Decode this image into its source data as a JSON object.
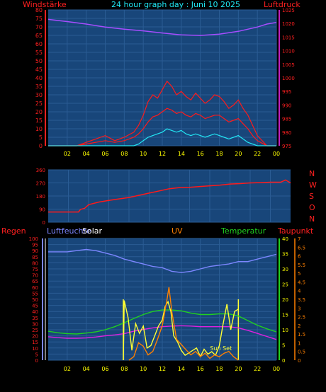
{
  "header": {
    "left": "Windstärke",
    "title": "24 hour graph day : Juni 10 2025",
    "right": "Luftdruck"
  },
  "x_ticks": [
    "02",
    "04",
    "06",
    "08",
    "10",
    "12",
    "14",
    "16",
    "18",
    "20",
    "22",
    "00"
  ],
  "colors": {
    "background": "#000000",
    "panel": "#18467a",
    "grid": "#2a5c94",
    "tick_text": "#ffff00",
    "wind_axis": "#ff2020",
    "pressure_axis": "#c020c0",
    "wind": "#ff1a1a",
    "gust": "#ff1a1a",
    "avg_wind": "#22e8f5",
    "pressure": "#a64dff",
    "direction": "#ff1a1a",
    "humidity": "#7c86ff",
    "solar_axis": "#ffffff",
    "uv": "#ff8000",
    "temperature": "#20d020",
    "dewpoint": "#e020e0",
    "solar": "#ffff33",
    "sunrise_line": "#ffff33"
  },
  "chart_data": [
    {
      "type": "line",
      "name": "wind-and-pressure",
      "x_unit": "hour",
      "xlim": [
        0,
        24
      ],
      "left_axis": {
        "title": "Windstärke",
        "ticks": [
          0,
          5,
          10,
          15,
          20,
          25,
          30,
          35,
          40,
          45,
          50,
          55,
          60,
          65,
          70,
          75,
          80
        ],
        "ylim": [
          0,
          80
        ]
      },
      "right_axis": {
        "title": "Luftdruck",
        "ticks": [
          975,
          980,
          985,
          990,
          995,
          1000,
          1005,
          1010,
          1015,
          1020,
          1025
        ],
        "ylim": [
          975,
          1025
        ]
      },
      "series": [
        {
          "key": "gust",
          "axis": "left",
          "color": "#ff1a1a",
          "x": [
            0,
            1,
            2,
            3,
            4,
            5,
            6,
            7,
            8,
            9,
            9.5,
            10,
            10.5,
            11,
            11.5,
            12,
            12.5,
            13,
            13.5,
            14,
            14.5,
            15,
            15.5,
            16,
            16.5,
            17,
            17.5,
            18,
            18.5,
            19,
            19.5,
            20,
            20.5,
            21,
            21.5,
            22,
            23,
            24
          ],
          "values": [
            0,
            0,
            0,
            0,
            2,
            4,
            6,
            3,
            5,
            8,
            12,
            18,
            26,
            30,
            28,
            33,
            38,
            35,
            30,
            32,
            29,
            27,
            31,
            28,
            25,
            27,
            30,
            29,
            26,
            22,
            24,
            27,
            22,
            18,
            12,
            6,
            0,
            0
          ]
        },
        {
          "key": "wind",
          "axis": "left",
          "color": "#ff1a1a",
          "x": [
            0,
            1,
            2,
            3,
            4,
            5,
            6,
            7,
            8,
            9,
            9.5,
            10,
            10.5,
            11,
            11.5,
            12,
            12.5,
            13,
            13.5,
            14,
            14.5,
            15,
            15.5,
            16,
            16.5,
            17,
            17.5,
            18,
            18.5,
            19,
            19.5,
            20,
            20.5,
            21,
            21.5,
            22,
            23,
            24
          ],
          "values": [
            0,
            0,
            0,
            0,
            1,
            2,
            3,
            2,
            3,
            5,
            7,
            10,
            14,
            17,
            18,
            20,
            22,
            21,
            19,
            20,
            18,
            17,
            19,
            18,
            16,
            17,
            18,
            18,
            16,
            14,
            15,
            16,
            13,
            10,
            6,
            3,
            0,
            0
          ]
        },
        {
          "key": "avg_wind",
          "axis": "left",
          "color": "#22e8f5",
          "x": [
            0,
            9,
            9.5,
            10,
            10.5,
            11,
            11.5,
            12,
            12.5,
            13,
            13.5,
            14,
            14.5,
            15,
            15.5,
            16,
            16.5,
            17,
            17.5,
            18,
            18.5,
            19,
            19.5,
            20,
            20.5,
            21,
            22,
            24
          ],
          "values": [
            0,
            0,
            1,
            3,
            5,
            6,
            7,
            8,
            10,
            9,
            8,
            9,
            7,
            6,
            7,
            6,
            5,
            6,
            7,
            6,
            5,
            4,
            5,
            6,
            4,
            2,
            0,
            0
          ]
        },
        {
          "key": "pressure",
          "axis": "right",
          "color": "#a64dff",
          "x": [
            0,
            2,
            4,
            6,
            8,
            10,
            12,
            14,
            16,
            18,
            20,
            22,
            23,
            24
          ],
          "values": [
            1021.5,
            1020.7,
            1019.8,
            1018.7,
            1017.9,
            1017.3,
            1016.5,
            1015.8,
            1015.6,
            1016.1,
            1017.1,
            1018.7,
            1019.8,
            1020.4
          ]
        }
      ]
    },
    {
      "type": "scatter",
      "name": "wind-direction",
      "x_unit": "hour",
      "xlim": [
        0,
        24
      ],
      "left_axis": {
        "ticks": [
          0,
          90,
          180,
          270,
          360
        ],
        "ylim": [
          0,
          360
        ]
      },
      "right_labels": [
        "N",
        "W",
        "S",
        "O",
        "N"
      ],
      "series": [
        {
          "key": "direction",
          "color": "#ff1a1a",
          "x": [
            0,
            1,
            2,
            3,
            3.2,
            3.6,
            4,
            5,
            6,
            7,
            8,
            9,
            10,
            11,
            12,
            13,
            14,
            15,
            16,
            17,
            18,
            19,
            20,
            21,
            22,
            23,
            23.5,
            24
          ],
          "values": [
            70,
            70,
            70,
            70,
            88,
            95,
            120,
            138,
            150,
            160,
            170,
            185,
            200,
            215,
            230,
            238,
            240,
            245,
            250,
            255,
            262,
            265,
            270,
            272,
            275,
            275,
            290,
            270
          ]
        }
      ]
    },
    {
      "type": "line",
      "name": "weather",
      "x_unit": "hour",
      "xlim": [
        0,
        24
      ],
      "left_axis_regen": {
        "title": "Regen",
        "ticks": [
          0,
          5,
          10,
          15,
          20,
          25,
          30,
          35,
          40,
          45,
          50,
          55,
          60,
          65,
          70,
          75,
          80,
          85,
          90,
          95,
          100
        ],
        "ylim": [
          0,
          100
        ]
      },
      "left_axis_humidity": {
        "title": "Luftfeuchte",
        "ylim": [
          0,
          100
        ]
      },
      "solar_label": "Solar",
      "uv_label": "UV",
      "right_axis_temperature": {
        "title": "Temperatur",
        "ticks": [
          0,
          5,
          10,
          15,
          20,
          25,
          30,
          35,
          40
        ],
        "ylim": [
          0,
          40
        ]
      },
      "right_axis_dewpoint": {
        "title": "Taupunkt",
        "ticks": [
          0,
          0.5,
          1,
          1.5,
          2,
          2.5,
          3,
          3.5,
          4,
          4.5,
          5,
          5.5,
          6,
          6.5,
          7
        ],
        "ylim": [
          0,
          7
        ]
      },
      "sunrise_hour": 7.9,
      "sunset_hour": 20,
      "sunset_label": "Sun Set",
      "series": [
        {
          "key": "humidity",
          "axis": "humidity",
          "color": "#7c86ff",
          "x": [
            0,
            1,
            2,
            3,
            4,
            5,
            6,
            7,
            8,
            9,
            10,
            11,
            12,
            13,
            14,
            15,
            16,
            17,
            18,
            19,
            20,
            21,
            22,
            23,
            24
          ],
          "values": [
            89,
            89,
            89,
            90,
            91,
            90,
            88,
            86,
            83,
            81,
            79,
            77,
            76,
            73,
            72,
            73,
            75,
            77,
            78,
            79,
            81,
            81,
            83,
            85,
            87
          ]
        },
        {
          "key": "temperature",
          "axis": "temperature",
          "color": "#20d020",
          "x": [
            0,
            1,
            2,
            3,
            4,
            5,
            6,
            7,
            8,
            9,
            10,
            11,
            12,
            13,
            14,
            15,
            16,
            17,
            18,
            19,
            20,
            21,
            22,
            23,
            24
          ],
          "values": [
            9.5,
            9.0,
            8.7,
            8.6,
            8.9,
            9.3,
            10.0,
            11.0,
            12.3,
            13.7,
            15.0,
            16.0,
            16.5,
            16.5,
            16.2,
            15.5,
            15.0,
            15.0,
            15.2,
            15.2,
            14.5,
            13.0,
            11.5,
            10.3,
            9.3
          ]
        },
        {
          "key": "dewpoint",
          "axis": "temperature",
          "color": "#e020e0",
          "x": [
            0,
            1,
            2,
            3,
            4,
            5,
            6,
            7,
            8,
            9,
            10,
            11,
            12,
            13,
            14,
            15,
            16,
            17,
            18,
            19,
            20,
            21,
            22,
            23,
            24
          ],
          "values": [
            7.7,
            7.4,
            7.2,
            7.2,
            7.3,
            7.6,
            8.0,
            8.3,
            8.7,
            9.5,
            10.1,
            10.6,
            11.0,
            11.2,
            11.3,
            11.2,
            11.0,
            11.0,
            11.0,
            11.0,
            10.6,
            9.8,
            8.8,
            7.8,
            6.8
          ]
        },
        {
          "key": "solar",
          "axis": "regen",
          "color": "#ffff33",
          "x": [
            7.9,
            8,
            8.4,
            8.8,
            9.2,
            9.6,
            10,
            10.4,
            10.8,
            11.2,
            11.6,
            12,
            12.3,
            12.6,
            12.9,
            13.2,
            13.6,
            14,
            14.4,
            14.8,
            15.2,
            15.6,
            16,
            16.4,
            16.8,
            17.2,
            17.6,
            18,
            18.4,
            18.8,
            19.2,
            19.6,
            20
          ],
          "values": [
            0,
            49,
            35,
            8,
            30,
            22,
            28,
            10,
            12,
            20,
            28,
            33,
            44,
            48,
            40,
            20,
            15,
            8,
            4,
            6,
            8,
            10,
            3,
            9,
            5,
            7,
            4,
            12,
            30,
            46,
            25,
            40,
            42
          ]
        },
        {
          "key": "uv",
          "axis": "dewpoint",
          "color": "#ff8000",
          "x": [
            8.5,
            9,
            9.5,
            10,
            10.5,
            11,
            11.5,
            12,
            12.5,
            12.7,
            13,
            13.5,
            14,
            14.5,
            15,
            15.5,
            16,
            16.5,
            17,
            17.5,
            18,
            18.5,
            19,
            19.5,
            20
          ],
          "values": [
            0,
            0.2,
            1.0,
            0.8,
            0.3,
            0.5,
            1.2,
            2.0,
            3.5,
            4.2,
            2.8,
            1.2,
            0.9,
            0.6,
            0.3,
            0.5,
            0.2,
            0.4,
            0.1,
            0.3,
            0.2,
            0.4,
            0.5,
            0.2,
            0
          ]
        }
      ]
    }
  ]
}
